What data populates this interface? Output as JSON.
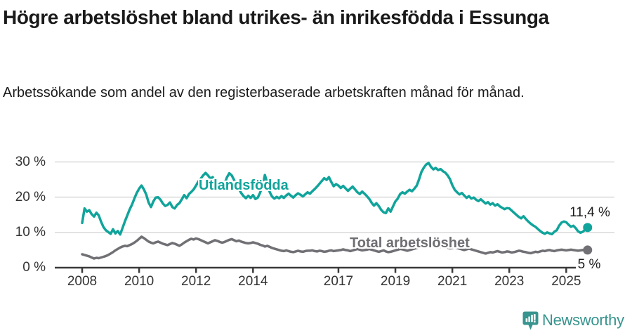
{
  "header": {
    "title": "Högre arbetslöshet bland utrikes- än inrikesfödda i Essunga",
    "subtitle": "Arbetssökande som andel av den registerbaserade arbetskraften månad för månad."
  },
  "chart_data": {
    "type": "line",
    "title": "Högre arbetslöshet bland utrikes- än inrikesfödda i Essunga",
    "subtitle": "Arbetssökande som andel av den registerbaserade arbetskraften månad för månad.",
    "x_unit": "month",
    "x_start": "2008-01",
    "x_end": "2025-10",
    "ylim": [
      0,
      32
    ],
    "grid": "horizontal-only",
    "y_ticks": [
      {
        "label": "30 %",
        "value": 30
      },
      {
        "label": "20 %",
        "value": 20
      },
      {
        "label": "10 %",
        "value": 10
      },
      {
        "label": "0 %",
        "value": 0
      }
    ],
    "x_ticks": [
      {
        "label": "2008",
        "year": 2008
      },
      {
        "label": "2010",
        "year": 2010
      },
      {
        "label": "2012",
        "year": 2012
      },
      {
        "label": "2014",
        "year": 2014
      },
      {
        "label": "2017",
        "year": 2017
      },
      {
        "label": "2019",
        "year": 2019
      },
      {
        "label": "2021",
        "year": 2021
      },
      {
        "label": "2023",
        "year": 2023
      },
      {
        "label": "2025",
        "year": 2025
      }
    ],
    "series": [
      {
        "name": "Utlandsfödda",
        "color": "#10a49b",
        "end_label": "11,4 %",
        "end_value": 11.4,
        "values": [
          12.7,
          16.8,
          15.9,
          16.3,
          15.2,
          14.5,
          15.6,
          14.8,
          13.0,
          11.5,
          10.6,
          10.1,
          9.6,
          10.9,
          9.7,
          10.4,
          9.4,
          11.2,
          13.1,
          14.8,
          16.5,
          17.9,
          19.6,
          21.2,
          22.4,
          23.3,
          22.2,
          20.8,
          18.5,
          17.2,
          18.8,
          19.9,
          20.0,
          19.3,
          18.2,
          17.5,
          17.8,
          18.5,
          17.2,
          16.8,
          17.8,
          18.3,
          19.4,
          20.6,
          19.7,
          20.9,
          21.5,
          22.2,
          23.3,
          24.5,
          25.3,
          26.2,
          26.9,
          26.2,
          25.3,
          25.7,
          24.4,
          23.2,
          22.4,
          23.0,
          23.8,
          25.6,
          26.8,
          26.2,
          24.9,
          23.6,
          22.4,
          21.2,
          20.3,
          19.7,
          20.4,
          19.8,
          20.6,
          19.5,
          19.9,
          21.3,
          23.1,
          26.3,
          24.0,
          21.5,
          20.2,
          19.6,
          20.1,
          19.7,
          20.3,
          19.8,
          20.5,
          21.0,
          20.4,
          19.9,
          20.6,
          21.1,
          20.7,
          20.2,
          20.8,
          21.4,
          21.0,
          21.7,
          22.3,
          23.0,
          23.8,
          24.6,
          25.4,
          24.9,
          25.7,
          24.3,
          23.1,
          23.7,
          23.3,
          22.6,
          23.2,
          22.5,
          21.8,
          22.4,
          23.0,
          22.2,
          21.4,
          20.9,
          21.6,
          21.0,
          20.3,
          19.5,
          18.4,
          17.6,
          18.3,
          17.5,
          16.4,
          15.7,
          15.5,
          16.8,
          15.9,
          17.4,
          18.8,
          19.6,
          20.9,
          21.4,
          21.0,
          21.6,
          22.1,
          21.7,
          22.4,
          23.3,
          25.1,
          27.2,
          28.4,
          29.3,
          29.7,
          28.6,
          27.9,
          28.3,
          27.7,
          28.0,
          27.4,
          27.0,
          26.2,
          25.1,
          23.4,
          22.1,
          21.4,
          20.8,
          21.2,
          20.5,
          19.8,
          20.3,
          19.6,
          19.9,
          19.3,
          18.9,
          19.4,
          18.8,
          18.2,
          18.6,
          17.9,
          18.3,
          17.6,
          18.0,
          17.4,
          17.0,
          16.6,
          16.9,
          16.8,
          16.2,
          15.6,
          15.0,
          14.4,
          14.0,
          14.6,
          13.8,
          13.1,
          12.5,
          12.0,
          11.6,
          11.0,
          10.4,
          9.9,
          9.6,
          10.0,
          9.7,
          9.5,
          10.2,
          10.6,
          11.9,
          12.8,
          13.1,
          12.9,
          12.2,
          11.6,
          11.9,
          11.2,
          10.3,
          9.9,
          10.2,
          10.8,
          11.4
        ]
      },
      {
        "name": "Total arbetslöshet",
        "color": "#707075",
        "end_label": "5 %",
        "end_value": 5.0,
        "values": [
          3.8,
          3.6,
          3.4,
          3.2,
          2.9,
          2.6,
          2.8,
          2.7,
          2.9,
          3.1,
          3.3,
          3.6,
          4.0,
          4.4,
          4.9,
          5.3,
          5.7,
          6.0,
          6.2,
          6.1,
          6.4,
          6.7,
          7.1,
          7.6,
          8.2,
          8.8,
          8.4,
          7.9,
          7.4,
          7.1,
          6.9,
          7.2,
          7.4,
          7.1,
          6.8,
          6.6,
          6.4,
          6.7,
          7.0,
          6.8,
          6.5,
          6.2,
          6.6,
          7.1,
          7.5,
          7.9,
          8.2,
          8.0,
          8.3,
          8.1,
          7.8,
          7.5,
          7.2,
          6.9,
          7.2,
          7.5,
          7.8,
          7.6,
          7.3,
          7.1,
          7.3,
          7.6,
          7.9,
          8.1,
          7.8,
          7.5,
          7.7,
          7.4,
          7.2,
          7.0,
          6.9,
          7.0,
          7.2,
          7.0,
          6.8,
          6.5,
          6.3,
          6.0,
          6.2,
          5.9,
          5.6,
          5.4,
          5.2,
          5.0,
          4.8,
          4.7,
          4.9,
          4.7,
          4.5,
          4.4,
          4.6,
          4.8,
          4.6,
          4.5,
          4.7,
          4.8,
          4.8,
          4.9,
          4.7,
          4.6,
          4.8,
          4.7,
          4.5,
          4.6,
          4.8,
          4.9,
          4.7,
          4.8,
          4.9,
          5.0,
          5.2,
          5.0,
          4.9,
          4.7,
          4.9,
          5.1,
          5.3,
          5.1,
          4.9,
          5.0,
          5.1,
          5.3,
          5.1,
          4.9,
          4.7,
          4.5,
          4.7,
          4.9,
          4.6,
          4.4,
          4.5,
          4.7,
          4.9,
          5.1,
          5.3,
          5.2,
          5.0,
          4.8,
          5.0,
          5.2,
          5.4,
          5.6,
          5.8,
          6.0,
          6.1,
          6.0,
          6.2,
          6.4,
          6.2,
          6.0,
          5.8,
          5.9,
          6.1,
          5.9,
          5.7,
          5.5,
          5.6,
          5.8,
          5.6,
          5.4,
          5.2,
          5.0,
          5.2,
          5.4,
          5.2,
          5.0,
          4.8,
          4.6,
          4.4,
          4.2,
          4.0,
          4.2,
          4.4,
          4.3,
          4.5,
          4.7,
          4.5,
          4.3,
          4.4,
          4.6,
          4.5,
          4.3,
          4.4,
          4.6,
          4.8,
          4.7,
          4.5,
          4.4,
          4.2,
          4.1,
          4.3,
          4.5,
          4.4,
          4.6,
          4.8,
          4.7,
          4.9,
          5.0,
          4.8,
          4.7,
          4.9,
          5.0,
          5.1,
          5.0,
          4.9,
          5.0,
          5.1,
          5.0,
          4.9,
          4.8,
          4.9,
          5.0,
          4.9,
          5.0
        ]
      }
    ]
  },
  "colors": {
    "accent_teal": "#10a49b",
    "line_gray": "#707075",
    "gridline": "#d9d9d9",
    "axis": "#3a3a3a",
    "brand": "#38948e"
  },
  "footer": {
    "brand": "Newsworthy"
  }
}
